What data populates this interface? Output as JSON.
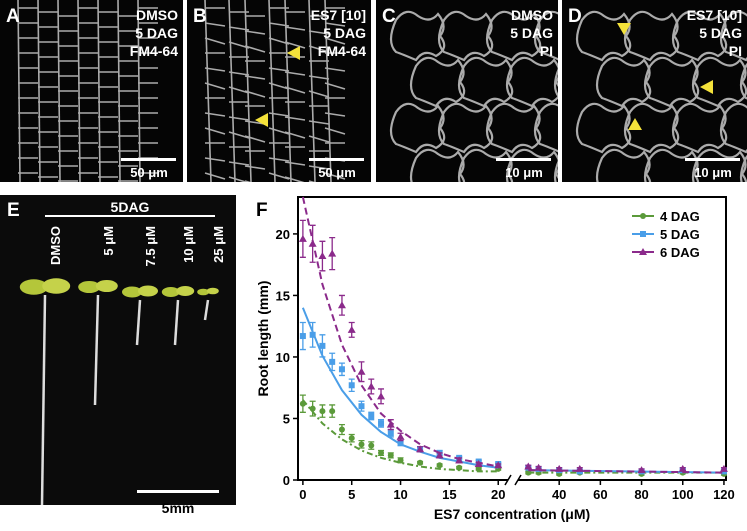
{
  "panels": [
    {
      "label": "A",
      "texts": [
        "DMSO",
        "5 DAG",
        "FM4-64"
      ],
      "scale_bar": "50 μm"
    },
    {
      "label": "B",
      "texts": [
        "ES7 [10]",
        "5 DAG",
        "FM4-64"
      ],
      "scale_bar": "50 μm"
    },
    {
      "label": "C",
      "texts": [
        "DMSO",
        "5 DAG",
        "PI"
      ],
      "scale_bar": "10 μm"
    },
    {
      "label": "D",
      "texts": [
        "ES7 [10]",
        "5 DAG",
        "PI"
      ],
      "scale_bar": "10 μm"
    }
  ],
  "seedlings": {
    "label": "E",
    "header": "5DAG",
    "treatments": [
      "DMSO",
      "5 μM",
      "7.5 μM",
      "10 μM",
      "25 μM"
    ],
    "scale_bar": "5mm"
  },
  "chart_data": {
    "type": "scatter",
    "panel_label": "F",
    "xlabel": "ES7 concentration (μM)",
    "ylabel": "Root length (mm)",
    "x": [
      0,
      1,
      2,
      3,
      4,
      5,
      6,
      7,
      8,
      9,
      10,
      12,
      14,
      16,
      18,
      20,
      25,
      30,
      40,
      50,
      80,
      100,
      120
    ],
    "fit_x": [
      0,
      2,
      4,
      6,
      8,
      10,
      12,
      14,
      16,
      18,
      20,
      25,
      120
    ],
    "series": [
      {
        "name": "4 DAG",
        "color": "#5b9a3a",
        "marker": "circle",
        "values": [
          6.2,
          5.8,
          5.6,
          5.6,
          4.1,
          3.4,
          2.9,
          2.8,
          2.2,
          2.0,
          1.6,
          1.4,
          1.2,
          1.0,
          0.9,
          0.9,
          0.6,
          0.6,
          0.5,
          0.6,
          0.5,
          0.6,
          0.5
        ],
        "errors": [
          0.7,
          0.6,
          0.5,
          0.5,
          0.4,
          0.3,
          0.3,
          0.3,
          0.2,
          0.2,
          0.2,
          0.1,
          0.1,
          0.1,
          0.1,
          0.1,
          0.1,
          0.1,
          0.1,
          0.1,
          0.1,
          0.1,
          0.1
        ],
        "fit": [
          6.5,
          4.6,
          3.3,
          2.4,
          1.8,
          1.4,
          1.1,
          0.9,
          0.8,
          0.7,
          0.7,
          0.6,
          0.6
        ]
      },
      {
        "name": "5 DAG",
        "color": "#4a9ee8",
        "marker": "square",
        "values": [
          11.7,
          11.8,
          10.9,
          9.6,
          9.0,
          7.7,
          6.0,
          5.2,
          4.6,
          3.8,
          3.0,
          2.5,
          2.2,
          1.8,
          1.5,
          1.3,
          1.0,
          0.9,
          0.8,
          0.7,
          0.7,
          0.8,
          0.7
        ],
        "errors": [
          1.1,
          1.0,
          0.9,
          0.7,
          0.5,
          0.5,
          0.4,
          0.3,
          0.3,
          0.3,
          0.2,
          0.2,
          0.2,
          0.1,
          0.1,
          0.1,
          0.1,
          0.1,
          0.1,
          0.1,
          0.1,
          0.1,
          0.1
        ],
        "fit": [
          14,
          10.1,
          7.3,
          5.3,
          3.9,
          2.9,
          2.3,
          1.8,
          1.5,
          1.2,
          1.0,
          0.8,
          0.6
        ]
      },
      {
        "name": "6 DAG",
        "color": "#8b2a8b",
        "marker": "triangle",
        "values": [
          19.6,
          19.2,
          18.2,
          18.4,
          14.2,
          12.2,
          8.8,
          7.6,
          6.8,
          4.5,
          3.5,
          2.5,
          2.0,
          1.6,
          1.3,
          1.2,
          1.1,
          1.0,
          0.9,
          0.9,
          0.8,
          0.9,
          0.9
        ],
        "errors": [
          1.5,
          1.5,
          1.2,
          1.3,
          0.8,
          0.6,
          0.8,
          0.6,
          0.6,
          0.4,
          0.3,
          0.2,
          0.2,
          0.2,
          0.1,
          0.1,
          0.1,
          0.1,
          0.1,
          0.1,
          0.1,
          0.1,
          0.1
        ],
        "fit": [
          23,
          15.9,
          11.0,
          7.7,
          5.4,
          4.0,
          2.9,
          2.2,
          1.7,
          1.4,
          1.1,
          0.8,
          0.6
        ]
      }
    ],
    "xlim": [
      [
        -0.5,
        21
      ],
      [
        20,
        121
      ]
    ],
    "xticks": [
      0,
      5,
      10,
      15,
      20,
      40,
      60,
      80,
      100,
      120
    ],
    "ylim": [
      0,
      23
    ],
    "yticks": [
      0,
      5,
      10,
      15,
      20
    ],
    "legend": "upper right"
  }
}
